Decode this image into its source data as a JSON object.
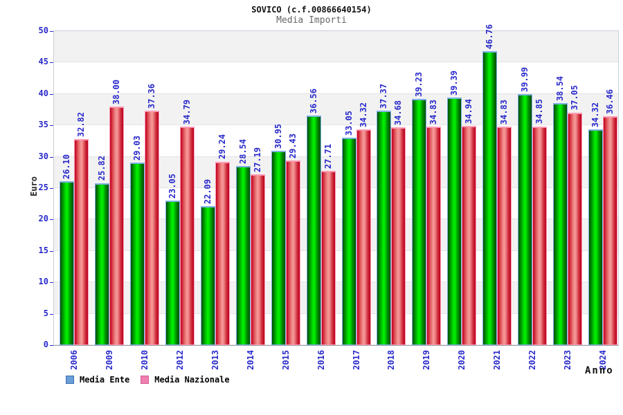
{
  "title": "SOVICO (c.f.00866640154)",
  "subtitle": "Media Importi",
  "chart_data": {
    "type": "bar",
    "title": "SOVICO (c.f.00866640154)",
    "subtitle": "Media Importi",
    "xlabel": "Anno",
    "ylabel": "Euro",
    "ylim": [
      0,
      50
    ],
    "yticks": [
      0,
      5,
      10,
      15,
      20,
      25,
      30,
      35,
      40,
      45,
      50
    ],
    "grid": "alternating-horizontal-bands",
    "legend_position": "bottom-left",
    "categories": [
      "2006",
      "2009",
      "2010",
      "2012",
      "2013",
      "2014",
      "2015",
      "2016",
      "2017",
      "2018",
      "2019",
      "2020",
      "2021",
      "2022",
      "2023",
      "2024"
    ],
    "series": [
      {
        "name": "Media Ente",
        "bar_color": "green",
        "legend_color": "#6a9fd8",
        "cap_color": "#7fb2e5",
        "values": [
          26.1,
          25.82,
          29.03,
          23.05,
          22.09,
          28.54,
          30.95,
          36.56,
          33.05,
          37.37,
          39.23,
          39.39,
          46.76,
          39.99,
          38.54,
          34.32
        ],
        "labels": [
          "26.10",
          "25.82",
          "29.03",
          "23.05",
          "22.09",
          "28.54",
          "30.95",
          "36.56",
          "33.05",
          "37.37",
          "39.23",
          "39.39",
          "46.76",
          "39.99",
          "38.54",
          "34.32"
        ]
      },
      {
        "name": "Media Nazionale",
        "bar_color": "red",
        "legend_color": "#ef7fae",
        "cap_color": "#fb9cb6",
        "values": [
          32.82,
          38.0,
          37.36,
          34.79,
          29.24,
          27.19,
          29.43,
          27.71,
          34.32,
          34.68,
          34.83,
          34.94,
          34.83,
          34.85,
          37.05,
          36.46
        ],
        "labels": [
          "32.82",
          "38.00",
          "37.36",
          "34.79",
          "29.24",
          "27.19",
          "29.43",
          "27.71",
          "34.32",
          "34.68",
          "34.83",
          "34.94",
          "34.83",
          "34.85",
          "37.05",
          "36.46"
        ]
      }
    ]
  },
  "colors": {
    "label_blue": "#2929cc",
    "band_gray": "#f2f2f2",
    "band_white": "#ffffff",
    "band_line": "#e3e3e3",
    "plot_border": "#c9cdd6",
    "axis_line": "#9aa0a8"
  }
}
